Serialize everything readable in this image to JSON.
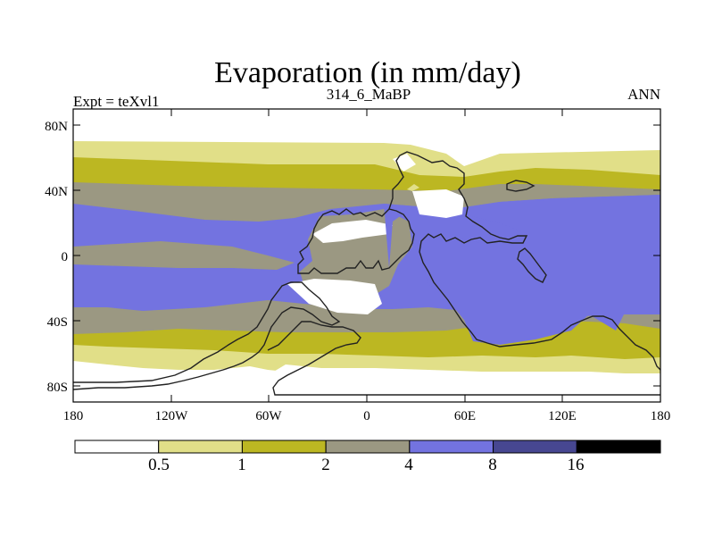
{
  "title": "Evaporation (in mm/day)",
  "subtitle_left": "Expt = teXvl1",
  "subtitle_center": "314_6_MaBP",
  "subtitle_right": "ANN",
  "y_ticks": [
    "80N",
    "40N",
    "0",
    "40S",
    "80S"
  ],
  "x_ticks": [
    "180",
    "120W",
    "60W",
    "0",
    "60E",
    "120E",
    "180"
  ],
  "colorbar": {
    "labels": [
      "0.5",
      "1",
      "2",
      "4",
      "8",
      "16"
    ],
    "colors": [
      "#ffffff",
      "#e1df88",
      "#bcb722",
      "#9b9882",
      "#7373e0",
      "#474791",
      "#000000"
    ]
  },
  "chart_data": {
    "type": "heatmap",
    "title": "Evaporation (in mm/day)",
    "variable": "Evaporation",
    "units": "mm/day",
    "experiment": "teXvl1",
    "period": "314_6_MaBP",
    "season": "ANN",
    "x_range": [
      -180,
      180
    ],
    "y_range": [
      -90,
      90
    ],
    "levels": [
      0.5,
      1,
      2,
      4,
      8,
      16
    ]
  }
}
